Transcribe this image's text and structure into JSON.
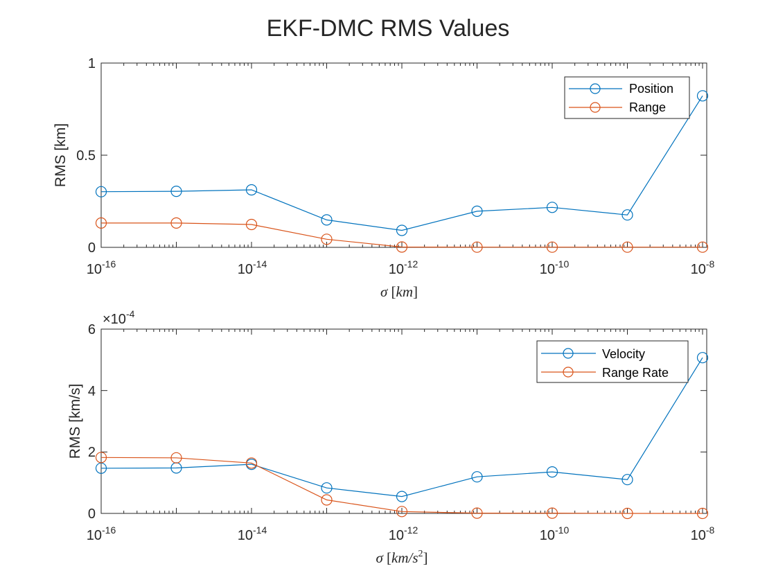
{
  "figure": {
    "title": "EKF-DMC RMS Values"
  },
  "chart_data": [
    {
      "type": "line",
      "xscale": "log",
      "x": [
        1e-16,
        1e-15,
        1e-14,
        1e-13,
        1e-12,
        1e-11,
        1e-10,
        1e-09,
        1e-08
      ],
      "series": [
        {
          "name": "Position",
          "color": "#0072BD",
          "marker": "circle",
          "values": [
            0.302,
            0.304,
            0.312,
            0.149,
            0.092,
            0.196,
            0.217,
            0.176,
            0.822
          ]
        },
        {
          "name": "Range",
          "color": "#D95319",
          "marker": "circle",
          "values": [
            0.132,
            0.132,
            0.124,
            0.044,
            0.002,
            0.001,
            0.001,
            0.001,
            0.001
          ]
        }
      ],
      "xlim": [
        1e-16,
        1e-08
      ],
      "ylim": [
        0,
        1
      ],
      "xticks": [
        {
          "base": "10",
          "exp": "-16"
        },
        {
          "base": "10",
          "exp": "-14"
        },
        {
          "base": "10",
          "exp": "-12"
        },
        {
          "base": "10",
          "exp": "-10"
        },
        {
          "base": "10",
          "exp": "-8"
        }
      ],
      "yticks": [
        "0",
        "0.5",
        "1"
      ],
      "ylabel": "RMS [km]",
      "xlabel": {
        "symbol": "σ",
        "unit": "km"
      },
      "legend_position": "top-right",
      "grid": false
    },
    {
      "type": "line",
      "xscale": "log",
      "x": [
        1e-16,
        1e-15,
        1e-14,
        1e-13,
        1e-12,
        1e-11,
        1e-10,
        1e-09,
        1e-08
      ],
      "series": [
        {
          "name": "Velocity",
          "color": "#0072BD",
          "marker": "circle",
          "values": [
            0.000147,
            0.000148,
            0.00016,
            8.3e-05,
            5.5e-05,
            0.000119,
            0.000135,
            0.00011,
            0.000507
          ]
        },
        {
          "name": "Range Rate",
          "color": "#D95319",
          "marker": "circle",
          "values": [
            0.000182,
            0.000181,
            0.000164,
            4.4e-05,
            6e-06,
            1e-06,
            1e-06,
            0.0,
            0.0
          ]
        }
      ],
      "xlim": [
        1e-16,
        1e-08
      ],
      "ylim": [
        0,
        0.0006
      ],
      "xticks": [
        {
          "base": "10",
          "exp": "-16"
        },
        {
          "base": "10",
          "exp": "-14"
        },
        {
          "base": "10",
          "exp": "-12"
        },
        {
          "base": "10",
          "exp": "-10"
        },
        {
          "base": "10",
          "exp": "-8"
        }
      ],
      "yticks": [
        "0",
        "2",
        "4",
        "6"
      ],
      "ytick_multiplier": {
        "prefix": "×10",
        "exp": "-4"
      },
      "ylabel": "RMS [km/s]",
      "xlabel": {
        "symbol": "σ",
        "unit": "km/s",
        "unit_exp": "2"
      },
      "legend_position": "top-right",
      "grid": false
    }
  ]
}
